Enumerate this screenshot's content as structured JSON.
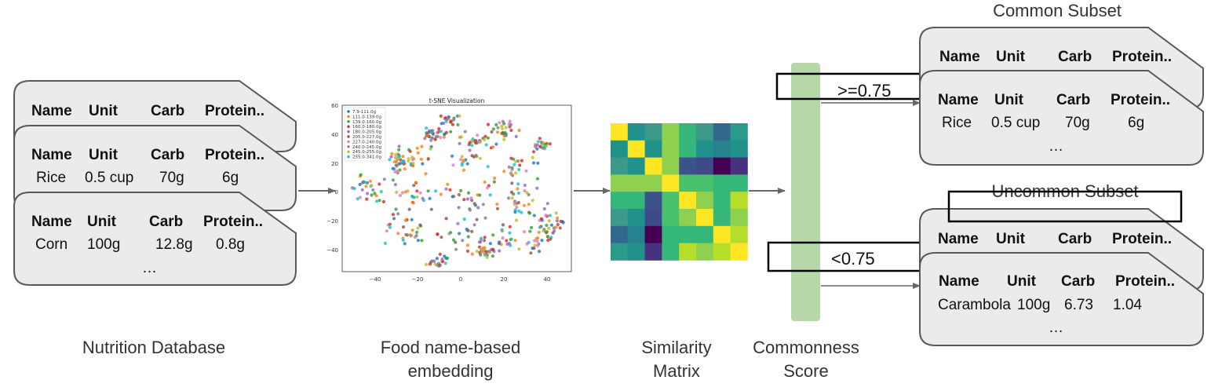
{
  "database": {
    "caption": "Nutrition Database",
    "header": [
      "Name",
      "Unit",
      "Carb",
      "Protein.."
    ],
    "row_rice": [
      "Rice",
      "0.5 cup",
      "70g",
      "6g"
    ],
    "row_corn": [
      "Corn",
      "100g",
      "12.8g",
      "0.8g"
    ],
    "ellipsis": "…"
  },
  "embedding": {
    "caption_line1": "Food name-based",
    "caption_line2": "embedding",
    "plot_title": "t-SNE Visualization",
    "x_ticks": [
      "−40",
      "−20",
      "0",
      "20",
      "40"
    ],
    "y_ticks": [
      "60",
      "40",
      "20",
      "0",
      "−20",
      "−40"
    ],
    "legend": [
      {
        "label": "7.9-111.0g",
        "color": "#1f77b4"
      },
      {
        "label": "111.0-139.0g",
        "color": "#ff7f0e"
      },
      {
        "label": "139.0-160.0g",
        "color": "#2ca02c"
      },
      {
        "label": "160.0-180.0g",
        "color": "#d62728"
      },
      {
        "label": "180.0-205.0g",
        "color": "#9467bd"
      },
      {
        "label": "205.0-227.0g",
        "color": "#8c564b"
      },
      {
        "label": "227.0-240.0g",
        "color": "#e377c2"
      },
      {
        "label": "240.0-245.0g",
        "color": "#7f7f7f"
      },
      {
        "label": "245.0-255.0g",
        "color": "#bcbd22"
      },
      {
        "label": "255.0-341.0g",
        "color": "#17becf"
      }
    ]
  },
  "similarity": {
    "caption_line1": "Similarity",
    "caption_line2": "Matrix",
    "colors": [
      [
        "#fde725",
        "#21918c",
        "#3b9a8a",
        "#8fd14f",
        "#35b779",
        "#3b9a8a",
        "#31688e",
        "#2a9a8a"
      ],
      [
        "#21918c",
        "#fde725",
        "#21918c",
        "#8fd14f",
        "#35b779",
        "#21918c",
        "#26828e",
        "#21918c"
      ],
      [
        "#3b9a8a",
        "#21918c",
        "#fde725",
        "#8fd14f",
        "#3b528b",
        "#3e4a89",
        "#440154",
        "#46327e"
      ],
      [
        "#8fd14f",
        "#8fd14f",
        "#8fd14f",
        "#fde725",
        "#4ac16d",
        "#4ac16d",
        "#35b779",
        "#35b779"
      ],
      [
        "#35b779",
        "#35b779",
        "#3b528b",
        "#4ac16d",
        "#fde725",
        "#8fd14f",
        "#35b779",
        "#b5de2b"
      ],
      [
        "#3b9a8a",
        "#21918c",
        "#3e4a89",
        "#4ac16d",
        "#8fd14f",
        "#fde725",
        "#35b779",
        "#8fd14f"
      ],
      [
        "#31688e",
        "#26828e",
        "#440154",
        "#35b779",
        "#35b779",
        "#35b779",
        "#fde725",
        "#b5de2b"
      ],
      [
        "#2a9a8a",
        "#21918c",
        "#46327e",
        "#35b779",
        "#b5de2b",
        "#8fd14f",
        "#b5de2b",
        "#fde725"
      ]
    ]
  },
  "commonness": {
    "caption_line1": "Commonness",
    "caption_line2": "Score",
    "bar_color": "#b6d7a8",
    "threshold_high": ">=0.75",
    "threshold_low": "<0.75"
  },
  "common_subset": {
    "title": "Common Subset",
    "header": [
      "Name",
      "Unit",
      "Carb",
      "Protein.."
    ],
    "row_rice": [
      "Rice",
      "0.5 cup",
      "70g",
      "6g"
    ],
    "ellipsis": "…"
  },
  "uncommon_subset": {
    "title": "Uncommon Subset",
    "header": [
      "Name",
      "Unit",
      "Carb",
      "Protein.."
    ],
    "row_carambola": [
      "Carambola",
      "100g",
      "6.73",
      "1.04"
    ],
    "ellipsis": "…"
  }
}
